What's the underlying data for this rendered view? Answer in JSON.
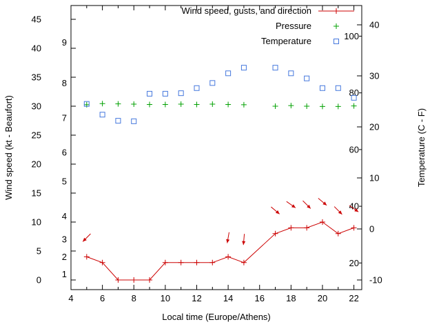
{
  "chart_data": {
    "type": "line",
    "title": "",
    "xlabel": "Local time (Europe/Athens)",
    "ylabel_left": "Wind speed (kt - Beaufort)",
    "ylabel_right": "Temperature (C - F)",
    "xlim": [
      4,
      22.5
    ],
    "x_ticks": [
      4,
      6,
      8,
      10,
      12,
      14,
      16,
      18,
      20,
      22
    ],
    "x_minor_ticks": [
      5,
      7,
      9,
      11,
      13,
      15,
      17,
      19,
      21
    ],
    "left_axis": {
      "label": "Wind speed (kt - Beaufort)",
      "lim": [
        0,
        45
      ],
      "ticks": [
        0,
        5,
        10,
        15,
        20,
        25,
        30,
        35,
        40,
        45
      ]
    },
    "beaufort_labels": [
      {
        "bft": "1",
        "kt": 1
      },
      {
        "bft": "2",
        "kt": 4
      },
      {
        "bft": "3",
        "kt": 7
      },
      {
        "bft": "4",
        "kt": 11
      },
      {
        "bft": "5",
        "kt": 17
      },
      {
        "bft": "6",
        "kt": 22
      },
      {
        "bft": "7",
        "kt": 28
      },
      {
        "bft": "8",
        "kt": 34
      },
      {
        "bft": "9",
        "kt": 41
      }
    ],
    "right_axis": {
      "label": "Temperature (C - F)",
      "lim": [
        -10,
        40
      ],
      "ticks": [
        -10,
        0,
        10,
        20,
        30,
        40
      ]
    },
    "fahrenheit_labels": [
      20,
      40,
      60,
      80,
      100
    ],
    "grid": false,
    "legend_position": "top-right-inside",
    "legend": [
      {
        "label": "Wind speed, gusts, and direction",
        "type": "line-plus",
        "color": "#cc0000"
      },
      {
        "label": "Pressure",
        "type": "plus",
        "color": "#00a000"
      },
      {
        "label": "Temperature",
        "type": "square",
        "color": "#4477dd"
      }
    ],
    "colors": {
      "wind": "#cc0000",
      "pressure": "#00a000",
      "temperature": "#4477dd",
      "axis": "#000000"
    },
    "series": {
      "wind_speed_kt": {
        "x": [
          5,
          6,
          7,
          8,
          9,
          10,
          11,
          12,
          13,
          14,
          15,
          17,
          18,
          19,
          20,
          21,
          22
        ],
        "y": [
          4,
          3,
          0,
          0,
          0,
          3,
          3,
          3,
          3,
          4,
          3,
          8,
          9,
          9,
          10,
          8,
          9
        ]
      },
      "wind_gust_arrows": [
        {
          "x": 5,
          "kt": 7.3,
          "angle_deg": 135
        },
        {
          "x": 14,
          "kt": 7.3,
          "angle_deg": 100
        },
        {
          "x": 15,
          "kt": 7.0,
          "angle_deg": 95
        },
        {
          "x": 17,
          "kt": 12.0,
          "angle_deg": 40
        },
        {
          "x": 18,
          "kt": 13.0,
          "angle_deg": 35
        },
        {
          "x": 19,
          "kt": 13.0,
          "angle_deg": 45
        },
        {
          "x": 20,
          "kt": 13.5,
          "angle_deg": 40
        },
        {
          "x": 21,
          "kt": 12.0,
          "angle_deg": 45
        },
        {
          "x": 22,
          "kt": 12.3,
          "angle_deg": 35
        }
      ],
      "pressure_inHg": {
        "x": [
          5,
          6,
          7,
          8,
          9,
          10,
          11,
          12,
          13,
          14,
          15,
          17,
          18,
          19,
          20,
          21,
          22
        ],
        "y": [
          30.25,
          30.45,
          30.4,
          30.35,
          30.3,
          30.3,
          30.35,
          30.3,
          30.35,
          30.3,
          30.25,
          30.0,
          30.1,
          30.0,
          29.95,
          29.95,
          30.05
        ]
      },
      "temperature_c": {
        "x": [
          5,
          6,
          7,
          8,
          9,
          10,
          11,
          12,
          13,
          14,
          15,
          17,
          18,
          19,
          20,
          21,
          22
        ],
        "y": [
          24.5,
          22.4,
          21.2,
          21.1,
          26.5,
          26.5,
          26.6,
          27.6,
          28.6,
          30.5,
          31.6,
          31.6,
          30.5,
          29.5,
          27.6,
          27.6,
          25.7
        ]
      }
    }
  }
}
